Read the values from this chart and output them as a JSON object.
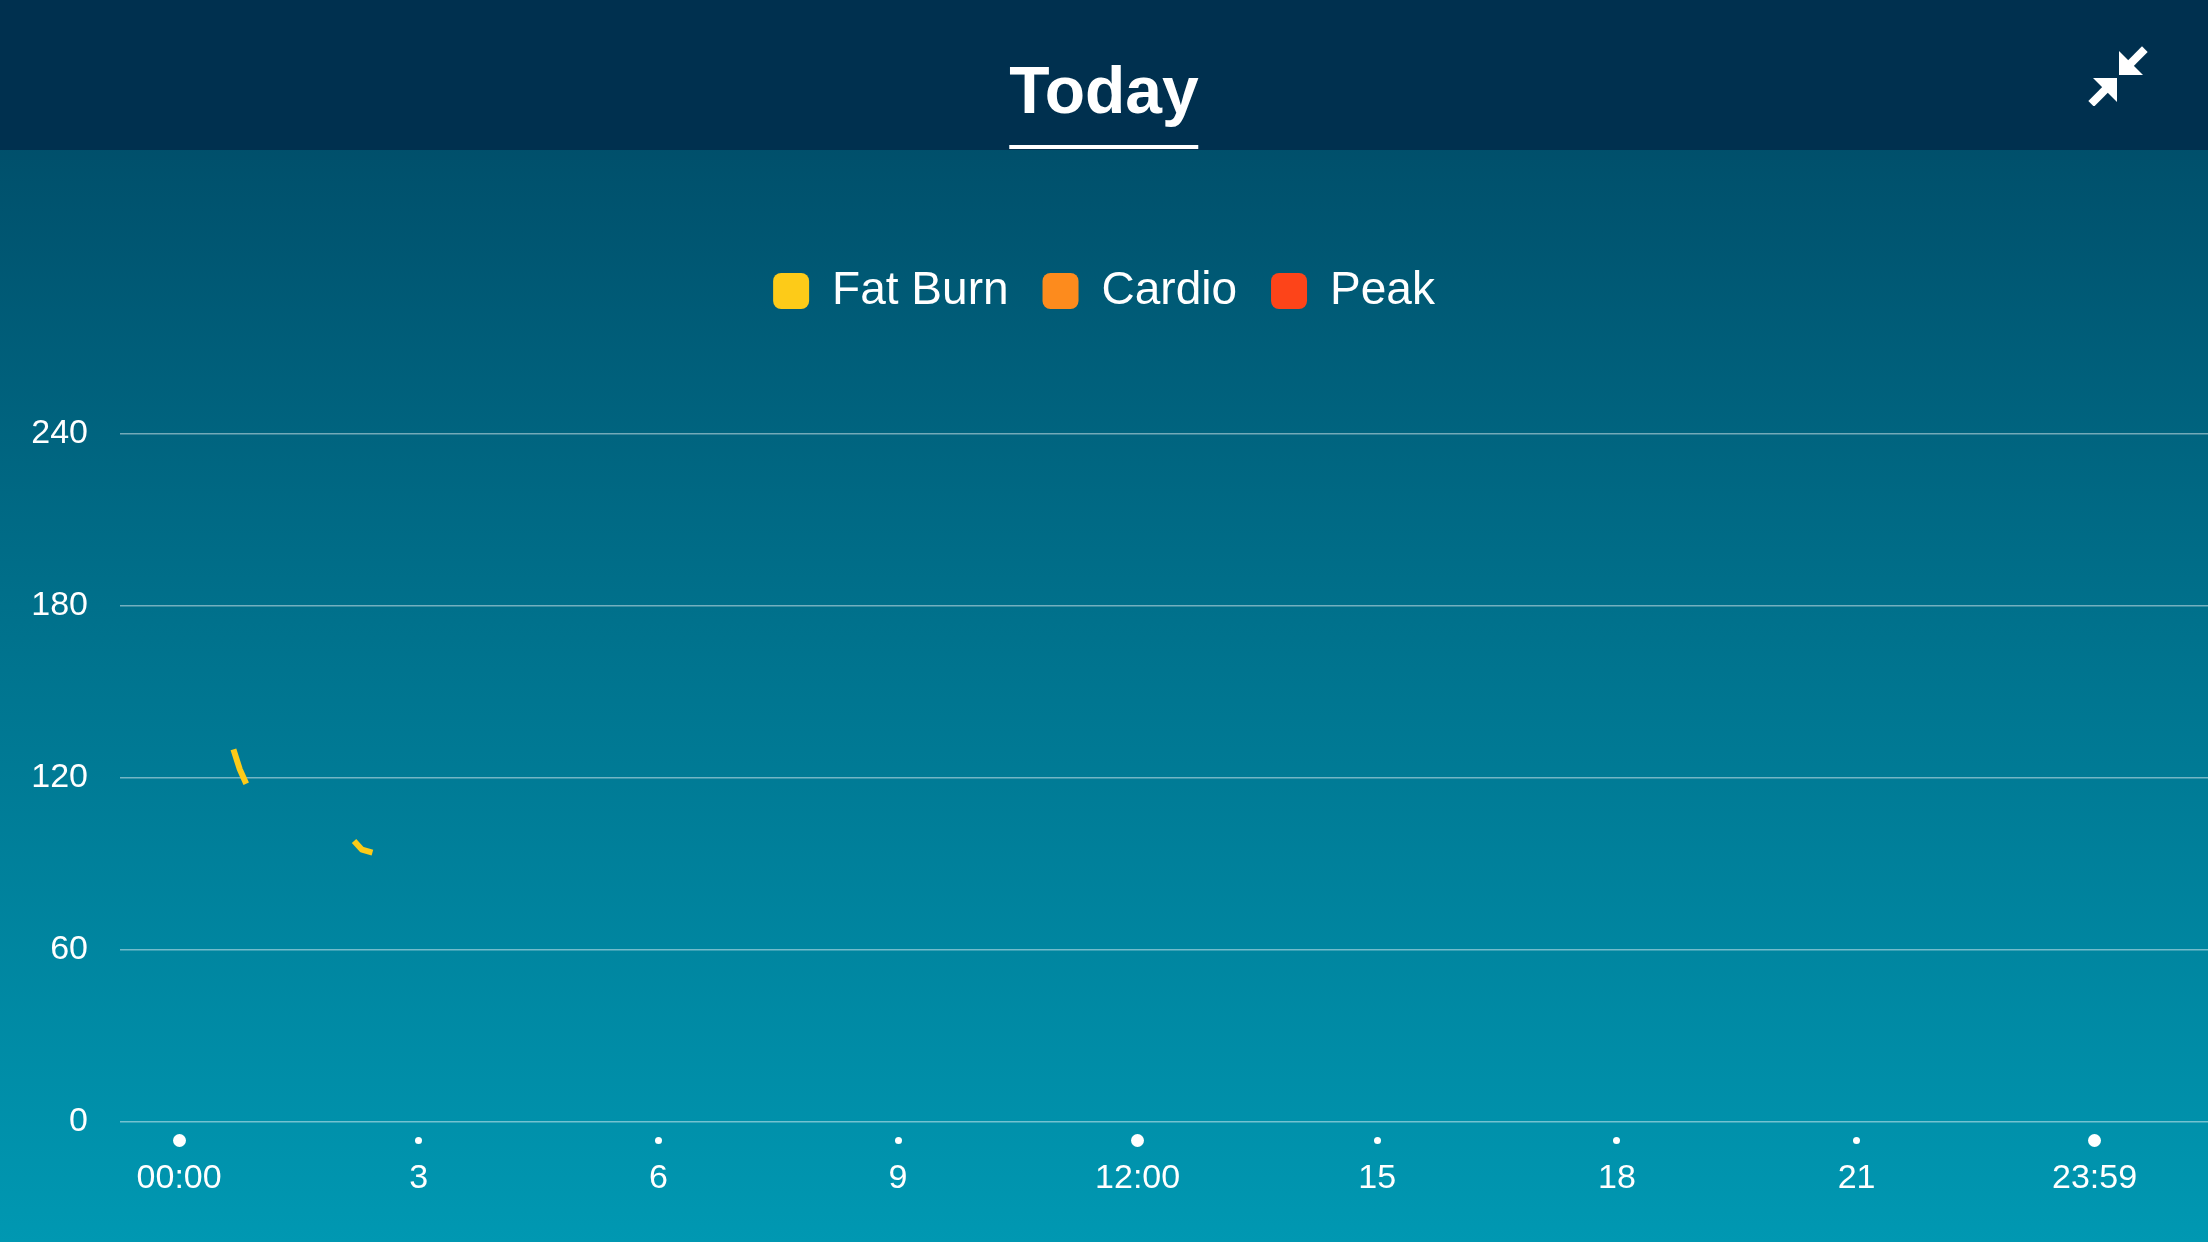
{
  "chart_data": {
    "type": "line",
    "title": "Today",
    "x": [
      0.68,
      0.76,
      0.84,
      1.5,
      2.19,
      2.29,
      2.42
    ],
    "series": [
      {
        "name": "Fat Burn",
        "color": "#fdcb18",
        "values": [
          130,
          123,
          118,
          null,
          98,
          95,
          94
        ]
      },
      {
        "name": "Cardio",
        "color": "#fd8b1d",
        "values": [
          null,
          null,
          null,
          null,
          null,
          null,
          null
        ]
      },
      {
        "name": "Peak",
        "color": "#fd4419",
        "values": [
          null,
          null,
          null,
          null,
          null,
          null,
          null
        ]
      }
    ],
    "xlim": [
      -0.74,
      25.4
    ],
    "xticks": [
      {
        "value": 0,
        "label": "00:00"
      },
      3,
      6,
      9,
      {
        "value": 12,
        "label": "12:00"
      },
      15,
      18,
      21,
      {
        "value": 23.98,
        "label": "23:59"
      }
    ],
    "ylim": [
      0,
      240
    ],
    "yticks": [
      0,
      60,
      120,
      180,
      240
    ],
    "grid": "y",
    "legend": "top",
    "marker": "none",
    "line_style": "solid"
  }
}
